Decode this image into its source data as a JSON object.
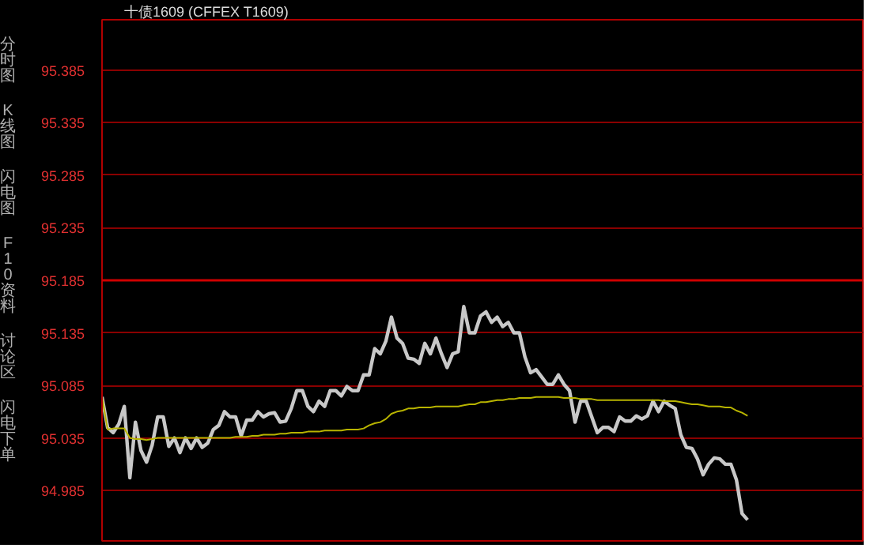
{
  "chart_data": {
    "type": "line",
    "title": "十债1609 (CFFEX T1609)",
    "annotations": [
      "分时图",
      "K线图",
      "闪电图",
      "F10资料",
      "讨论区",
      "闪电下单"
    ],
    "categories": [
      null,
      null,
      null,
      null,
      null,
      null,
      null,
      null,
      null,
      null,
      null,
      null,
      null,
      null,
      null,
      null,
      null,
      null,
      null,
      null,
      null,
      null,
      null,
      null,
      null,
      null,
      null,
      null,
      null,
      null,
      null,
      null,
      null,
      null,
      null,
      null,
      null,
      null,
      null,
      null,
      null,
      null,
      null,
      null,
      null,
      null,
      null,
      null,
      null,
      null,
      null,
      null,
      null,
      null,
      null,
      null,
      null,
      null,
      null,
      null,
      null,
      null,
      null,
      null,
      null,
      null,
      null,
      null,
      null,
      null,
      null,
      null,
      null,
      null,
      null,
      null,
      null,
      null,
      null,
      null,
      null,
      null,
      null,
      null,
      null,
      null,
      null,
      null,
      null,
      null,
      null,
      null,
      null,
      null,
      null,
      null,
      null,
      null,
      null,
      null,
      null,
      null,
      null,
      null,
      null,
      null,
      null,
      null,
      null,
      null,
      null,
      null,
      null,
      null,
      null,
      null,
      null,
      null,
      null,
      null,
      null,
      null,
      null,
      null,
      null,
      null,
      null,
      null,
      null,
      null,
      null,
      null,
      null,
      null,
      null,
      null,
      null,
      null
    ],
    "series": [
      {
        "color": "#c8c8c8",
        "values": [
          95.074,
          95.045,
          95.04,
          95.048,
          95.065,
          94.997,
          95.05,
          95.023,
          95.012,
          95.028,
          95.055,
          95.055,
          95.027,
          95.035,
          95.021,
          95.035,
          95.025,
          95.035,
          95.026,
          95.03,
          95.043,
          95.047,
          95.06,
          95.055,
          95.055,
          95.037,
          95.052,
          95.052,
          95.06,
          95.055,
          95.058,
          95.059,
          95.05,
          95.051,
          95.063,
          95.08,
          95.08,
          95.065,
          95.06,
          95.07,
          95.065,
          95.08,
          95.08,
          95.075,
          95.084,
          95.08,
          95.08,
          95.095,
          95.095,
          95.12,
          95.115,
          95.127,
          95.15,
          95.13,
          95.125,
          95.111,
          95.11,
          95.106,
          95.125,
          95.115,
          95.13,
          95.115,
          95.102,
          95.115,
          95.117,
          95.16,
          95.135,
          95.135,
          95.151,
          95.155,
          95.145,
          95.15,
          95.141,
          95.145,
          95.135,
          95.135,
          95.112,
          95.097,
          95.1,
          95.093,
          95.086,
          95.086,
          95.095,
          95.086,
          95.08,
          95.05,
          95.07,
          95.07,
          95.055,
          95.04,
          95.045,
          95.045,
          95.041,
          95.055,
          95.051,
          95.051,
          95.056,
          95.053,
          95.056,
          95.07,
          95.06,
          95.07,
          95.066,
          95.063,
          95.038,
          95.026,
          95.025,
          95.015,
          95.0,
          95.01,
          95.016,
          95.015,
          95.01,
          95.01,
          94.995,
          94.963,
          94.957,
          null,
          null,
          null,
          null,
          null,
          null,
          null,
          null,
          null,
          null,
          null,
          null,
          null,
          null,
          null,
          null,
          null,
          null,
          null,
          null,
          null
        ]
      },
      {
        "color": "#b8b400",
        "values": [
          95.074,
          95.043,
          95.044,
          95.044,
          95.044,
          95.035,
          95.034,
          95.034,
          95.033,
          95.034,
          95.035,
          95.035,
          95.035,
          95.035,
          95.035,
          95.035,
          95.035,
          95.035,
          95.035,
          95.035,
          95.035,
          95.035,
          95.035,
          95.035,
          95.036,
          95.036,
          95.036,
          95.037,
          95.037,
          95.038,
          95.038,
          95.038,
          95.039,
          95.039,
          95.04,
          95.04,
          95.04,
          95.041,
          95.041,
          95.041,
          95.042,
          95.042,
          95.042,
          95.042,
          95.043,
          95.043,
          95.043,
          95.044,
          95.047,
          95.049,
          95.05,
          95.053,
          95.058,
          95.06,
          95.061,
          95.063,
          95.063,
          95.064,
          95.064,
          95.064,
          95.065,
          95.065,
          95.065,
          95.065,
          95.065,
          95.066,
          95.067,
          95.067,
          95.069,
          95.069,
          95.07,
          95.071,
          95.071,
          95.072,
          95.072,
          95.073,
          95.073,
          95.073,
          95.074,
          95.074,
          95.074,
          95.074,
          95.074,
          95.073,
          95.073,
          95.073,
          95.072,
          95.072,
          95.072,
          95.071,
          95.071,
          95.071,
          95.071,
          95.071,
          95.071,
          95.071,
          95.071,
          95.071,
          95.071,
          95.071,
          95.071,
          95.07,
          95.07,
          95.07,
          95.069,
          95.068,
          95.067,
          95.067,
          95.066,
          95.065,
          95.065,
          95.065,
          95.064,
          95.064,
          95.061,
          95.059,
          95.056,
          null,
          null,
          null,
          null,
          null,
          null,
          null,
          null,
          null,
          null,
          null,
          null,
          null,
          null,
          null,
          null,
          null,
          null,
          null,
          null,
          null
        ]
      }
    ],
    "ylim": [
      94.937,
      95.433
    ],
    "yticks": [
      94.985,
      95.035,
      95.085,
      95.135,
      95.185,
      95.235,
      95.285,
      95.335,
      95.385
    ],
    "ref_lines": [
      {
        "axis": "y",
        "value": 95.185,
        "color": "#d00000"
      }
    ],
    "grid": "y",
    "tick_labels": "y",
    "marker": "none",
    "line_style": "solid"
  }
}
